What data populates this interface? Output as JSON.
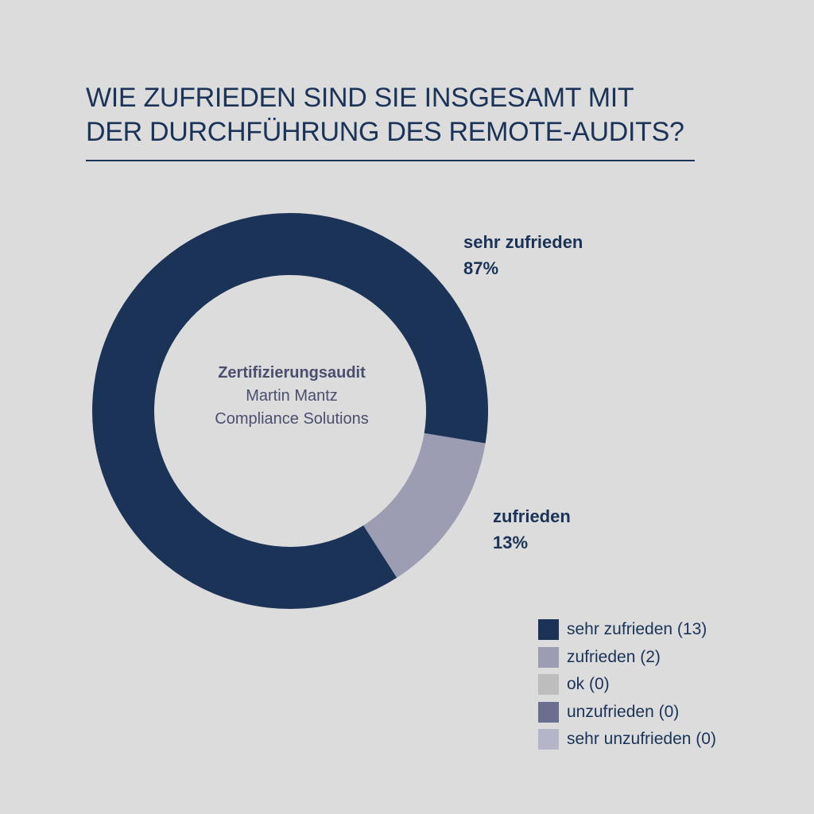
{
  "title": {
    "line1": "WIE ZUFRIEDEN SIND SIE INSGESAMT MIT",
    "line2": "DER DURCHFÜHRUNG DES REMOTE-AUDITS?"
  },
  "center": {
    "line1": "Zertifizierungsaudit",
    "line2": "Martin Mantz",
    "line3": "Compliance Solutions"
  },
  "chart_data": {
    "type": "pie",
    "variant": "donut",
    "title": "WIE ZUFRIEDEN SIND SIE INSGESAMT MIT DER DURCHFÜHRUNG DES REMOTE-AUDITS?",
    "categories": [
      "sehr zufrieden",
      "zufrieden",
      "ok",
      "unzufrieden",
      "sehr unzufrieden"
    ],
    "values": [
      13,
      2,
      0,
      0,
      0
    ],
    "colors": [
      "#1a3357",
      "#9c9db3",
      "#bdbdbd",
      "#6a6f90",
      "#b4b5c8"
    ],
    "slice_labels": [
      {
        "name": "sehr zufrieden",
        "pct": "87%"
      },
      {
        "name": "zufrieden",
        "pct": "13%"
      }
    ],
    "legend": [
      "sehr zufrieden (13)",
      "zufrieden (2)",
      "ok (0)",
      "unzufrieden (0)",
      "sehr unzufrieden (0)"
    ],
    "legend_placement": "bottom-right"
  }
}
